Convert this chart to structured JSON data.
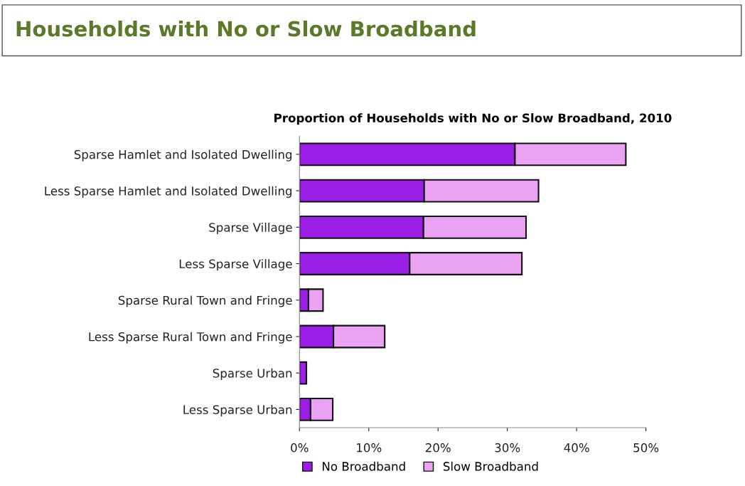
{
  "chart_data": {
    "type": "bar",
    "orientation": "horizontal",
    "stacked": true,
    "title": "Households with No or Slow Broadband",
    "subtitle": "Proportion of Households with No or Slow Broadband, 2010",
    "categories": [
      "Sparse Hamlet and Isolated Dwelling",
      "Less Sparse Hamlet and Isolated Dwelling",
      "Sparse Village",
      "Less Sparse Village",
      "Sparse Rural Town and Fringe",
      "Less Sparse Rural Town and Fringe",
      "Sparse Urban",
      "Less Sparse Urban"
    ],
    "series": [
      {
        "name": "No Broadband",
        "color": "#9a1ee6",
        "values": [
          31.1,
          18.0,
          17.9,
          15.9,
          1.3,
          4.9,
          1.0,
          1.6
        ]
      },
      {
        "name": "Slow Broadband",
        "color": "#eaa2f2",
        "values": [
          16.0,
          16.5,
          14.8,
          16.2,
          2.1,
          7.4,
          null,
          3.2
        ]
      }
    ],
    "xlim": [
      0,
      50
    ],
    "xticks": [
      {
        "value": 0,
        "label": "0%"
      },
      {
        "value": 10,
        "label": "10%"
      },
      {
        "value": 20,
        "label": "20%"
      },
      {
        "value": 30,
        "label": "30%"
      },
      {
        "value": 40,
        "label": "40%"
      },
      {
        "value": 50,
        "label": "50%"
      }
    ],
    "grid": false,
    "legend": "bottom"
  }
}
